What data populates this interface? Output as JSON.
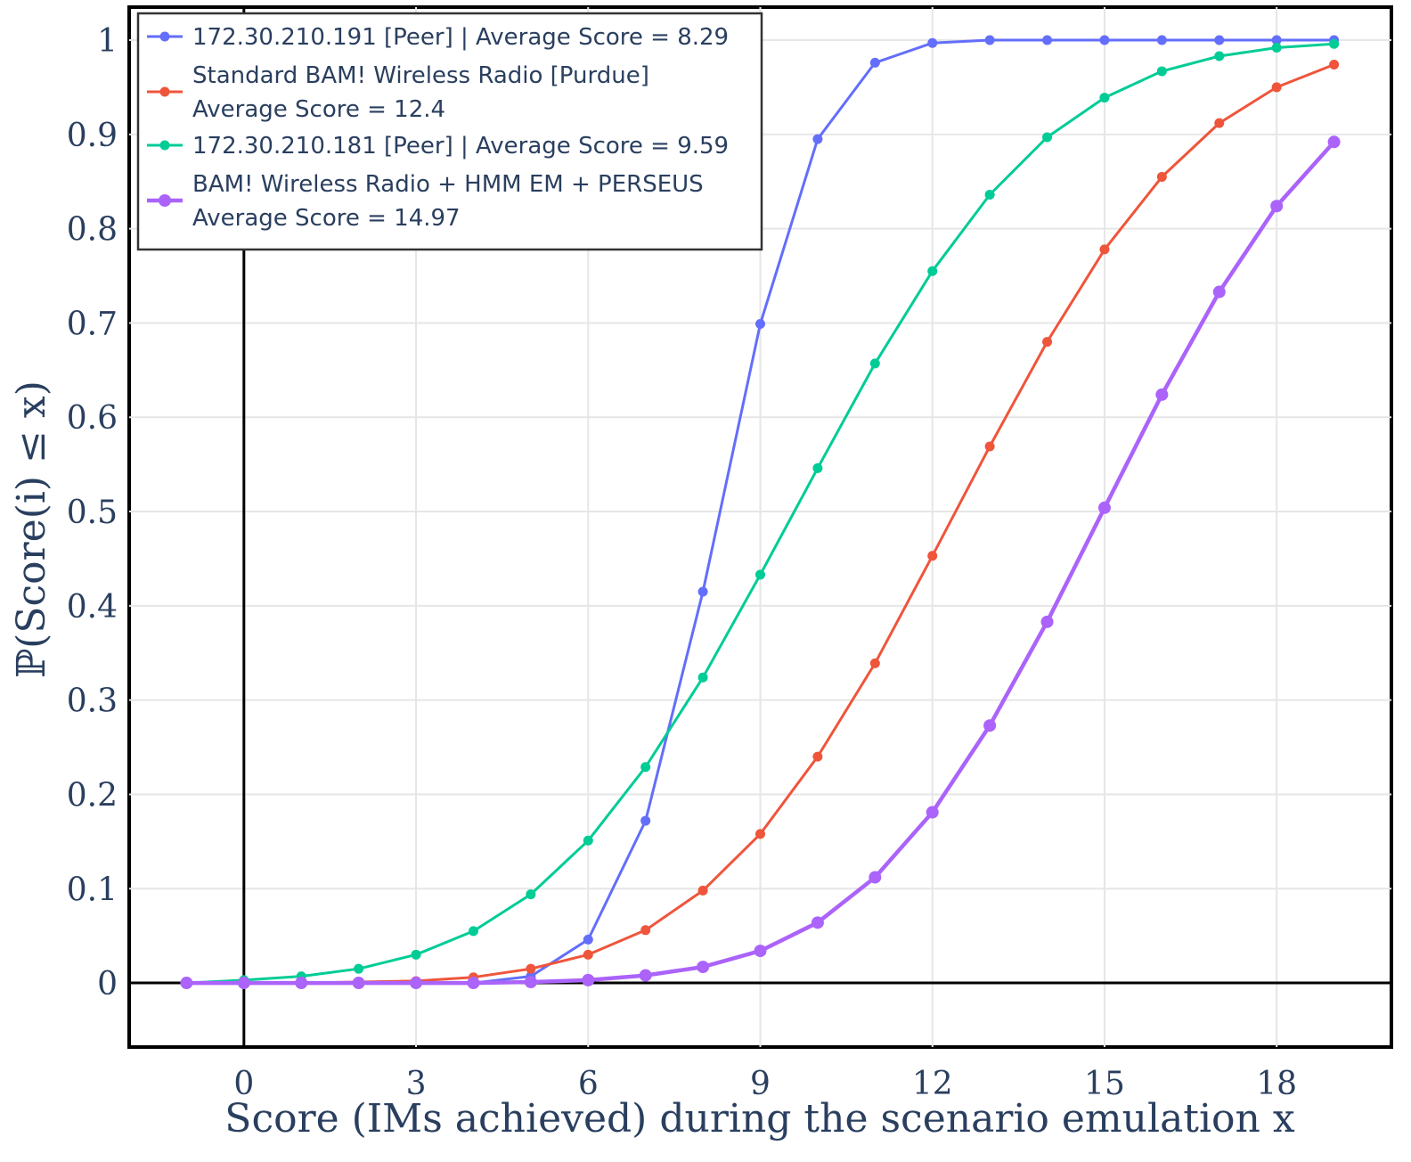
{
  "chart_data": {
    "type": "line",
    "xlabel": "Score (IMs achieved) during the scenario emulation x",
    "ylabel": "ℙ(Score(i) ≤ x)",
    "xlim": [
      -2,
      20
    ],
    "ylim": [
      -0.068,
      1.035
    ],
    "x_ticks": [
      0,
      3,
      6,
      9,
      12,
      15,
      18
    ],
    "x_tick_labels": [
      "0",
      "3",
      "6",
      "9",
      "12",
      "15",
      "18"
    ],
    "y_ticks": [
      0,
      0.1,
      0.2,
      0.3,
      0.4,
      0.5,
      0.6,
      0.7,
      0.8,
      0.9,
      1
    ],
    "y_tick_labels": [
      "0",
      "0.1",
      "0.2",
      "0.3",
      "0.4",
      "0.5",
      "0.6",
      "0.7",
      "0.8",
      "0.9",
      "1"
    ],
    "grid": true,
    "legend_position": "top-left",
    "x": [
      -1,
      0,
      1,
      2,
      3,
      4,
      5,
      6,
      7,
      8,
      9,
      10,
      11,
      12,
      13,
      14,
      15,
      16,
      17,
      18,
      19
    ],
    "series": [
      {
        "name": "172.30.210.191 [Peer] | Average Score = 8.29",
        "legend_lines": [
          "172.30.210.191 [Peer] | Average Score = 8.29"
        ],
        "color": "#636efa",
        "values": [
          0,
          0,
          0,
          0,
          0,
          0,
          0.007,
          0.046,
          0.172,
          0.415,
          0.699,
          0.895,
          0.976,
          0.997,
          1.0,
          1.0,
          1.0,
          1.0,
          1.0,
          1.0,
          1.0
        ]
      },
      {
        "name": "Standard BAM! Wireless Radio [Purdue] Average Score = 12.4",
        "legend_lines": [
          "Standard BAM! Wireless Radio [Purdue]",
          "Average Score = 12.4"
        ],
        "color": "#ef553b",
        "values": [
          0,
          0,
          0,
          0.001,
          0.002,
          0.006,
          0.015,
          0.03,
          0.056,
          0.098,
          0.158,
          0.24,
          0.339,
          0.453,
          0.569,
          0.68,
          0.778,
          0.855,
          0.912,
          0.95,
          0.974
        ]
      },
      {
        "name": "172.30.210.181 [Peer] | Average Score = 9.59",
        "legend_lines": [
          "172.30.210.181 [Peer] | Average Score = 9.59"
        ],
        "color": "#00cc96",
        "values": [
          0,
          0.003,
          0.007,
          0.015,
          0.03,
          0.055,
          0.094,
          0.151,
          0.229,
          0.324,
          0.433,
          0.546,
          0.657,
          0.755,
          0.836,
          0.897,
          0.939,
          0.967,
          0.983,
          0.992,
          0.996
        ]
      },
      {
        "name": "BAM! Wireless Radio + HMM EM + PERSEUS Average Score = 14.97",
        "legend_lines": [
          "BAM! Wireless Radio + HMM EM + PERSEUS",
          "Average Score = 14.97"
        ],
        "color": "#ab63fa",
        "values": [
          0,
          0,
          0,
          0,
          0,
          0,
          0.001,
          0.003,
          0.008,
          0.017,
          0.034,
          0.064,
          0.112,
          0.181,
          0.273,
          0.383,
          0.504,
          0.624,
          0.733,
          0.824,
          0.892
        ]
      }
    ]
  }
}
